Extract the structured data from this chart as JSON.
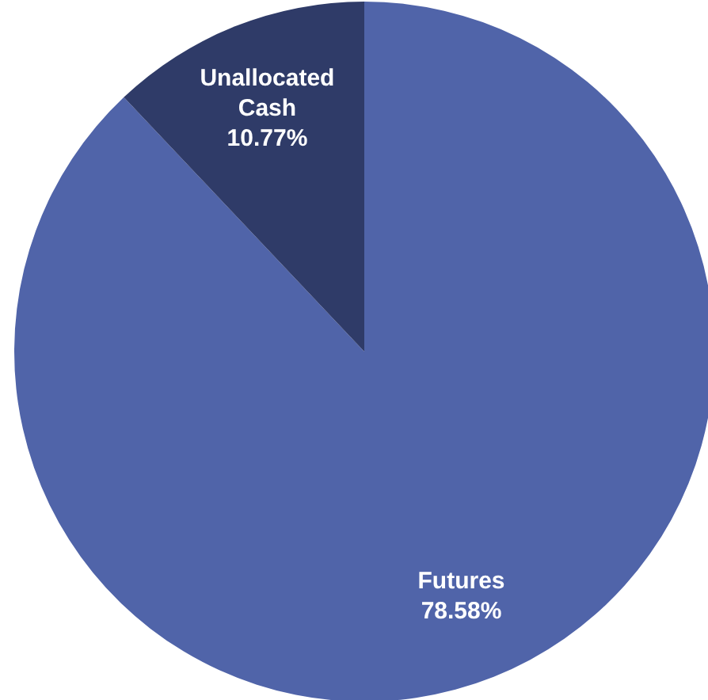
{
  "chart_data": {
    "type": "pie",
    "categories": [
      "Futures",
      "Unallocated Cash"
    ],
    "values": [
      78.58,
      10.77
    ],
    "colors": [
      "#5064a9",
      "#2f3b68"
    ],
    "value_labels": [
      "78.58%",
      "10.77%"
    ]
  }
}
